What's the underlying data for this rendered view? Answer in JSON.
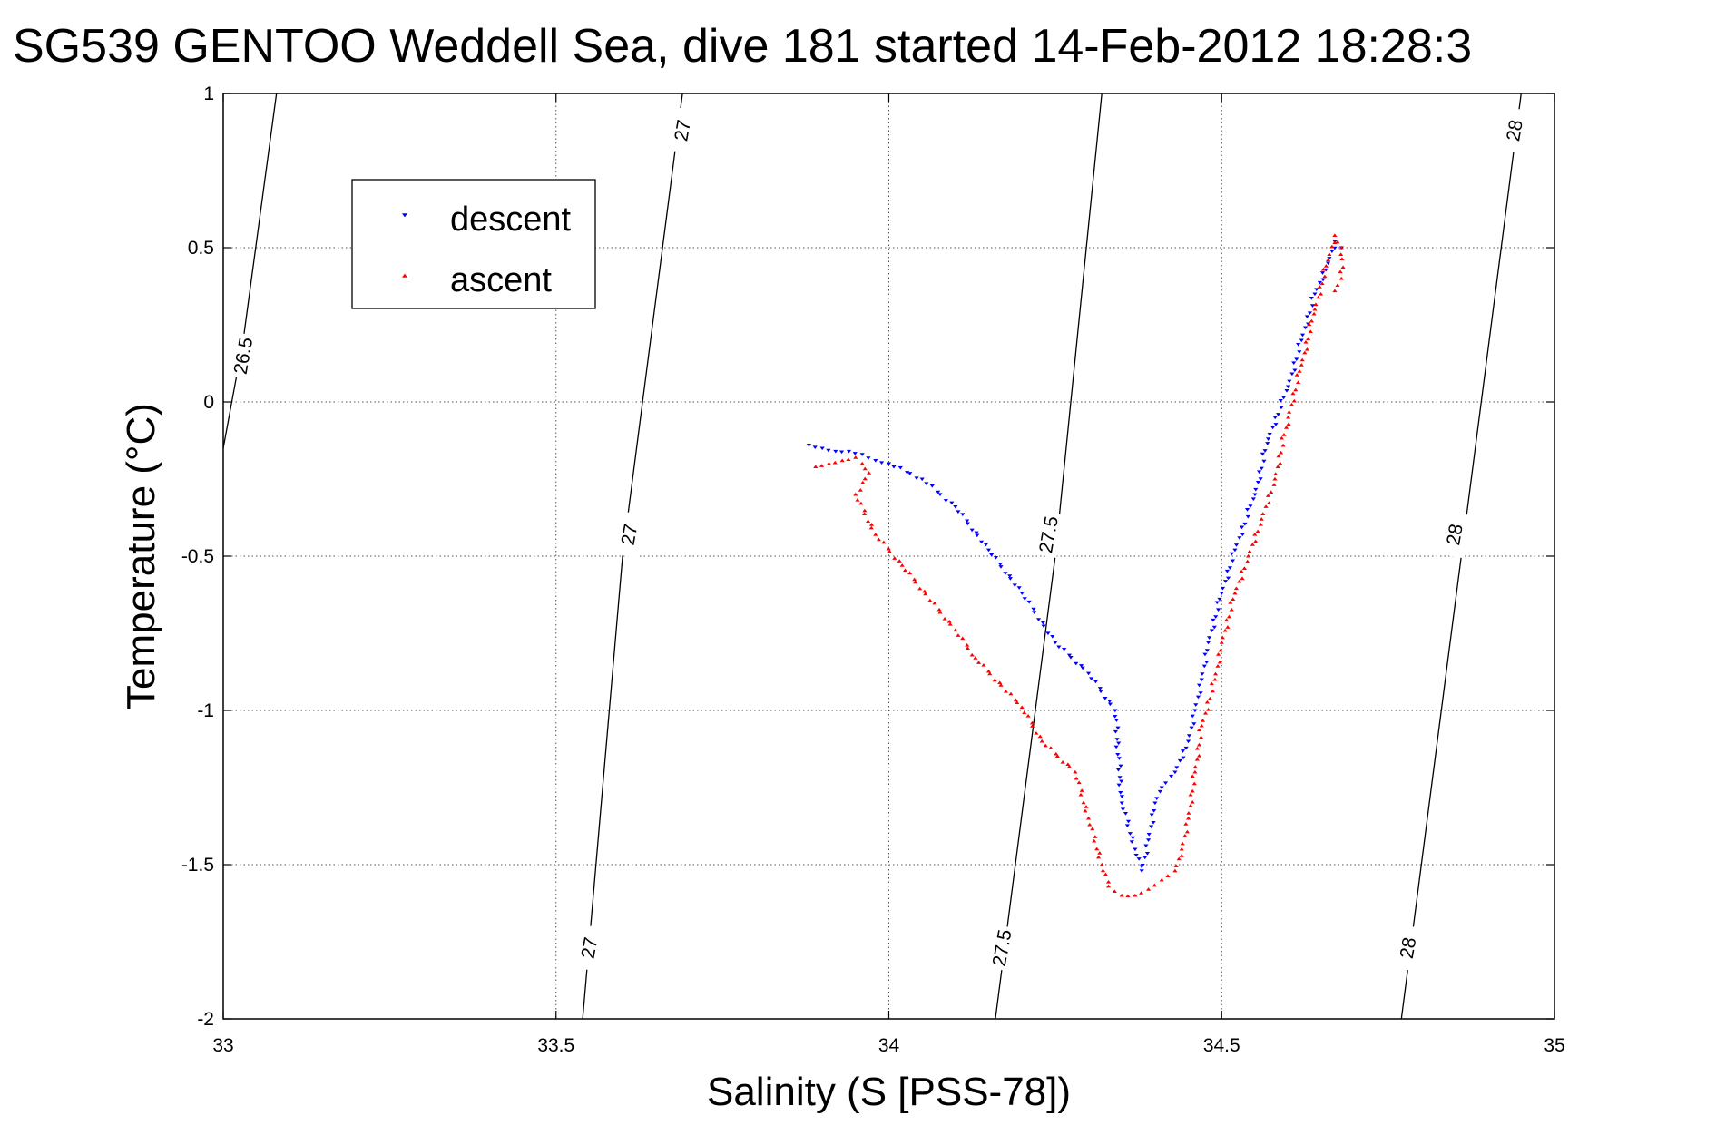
{
  "chart_data": {
    "type": "scatter",
    "title": "SG539 GENTOO Weddell Sea, dive 181 started 14-Feb-2012 18:28:3",
    "xlabel": "Salinity (S [PSS-78])",
    "ylabel": "Temperature (°C)",
    "xlim": [
      33,
      35
    ],
    "ylim": [
      -2,
      1
    ],
    "xticks": [
      33,
      33.5,
      34,
      34.5,
      35
    ],
    "xtick_labels": [
      "33",
      "33.5",
      "34",
      "34.5",
      "35"
    ],
    "yticks": [
      1,
      0.5,
      0,
      -0.5,
      -1,
      -1.5,
      -2
    ],
    "ytick_labels": [
      "1",
      "0.5",
      "0",
      "-0.5",
      "-1",
      "-1.5",
      "-2"
    ],
    "grid": true,
    "legend": {
      "position": "top-left",
      "entries": [
        {
          "label": "descent",
          "color": "#0000ff",
          "marker": "triangle-down"
        },
        {
          "label": "ascent",
          "color": "#ff0000",
          "marker": "triangle-up"
        }
      ]
    },
    "isopycnals": [
      {
        "label": "26.5",
        "points": [
          [
            33.0,
            -0.15
          ],
          [
            33.03,
            0.2
          ],
          [
            33.08,
            1.0
          ]
        ]
      },
      {
        "label": "27",
        "points": [
          [
            33.54,
            -2.0
          ],
          [
            33.6,
            -0.5
          ],
          [
            33.69,
            1.0
          ]
        ]
      },
      {
        "label": "27.5",
        "points": [
          [
            34.16,
            -2.0
          ],
          [
            34.25,
            -0.5
          ],
          [
            34.32,
            1.0
          ]
        ]
      },
      {
        "label": "28",
        "points": [
          [
            34.77,
            -2.0
          ],
          [
            34.86,
            -0.5
          ],
          [
            34.95,
            1.0
          ]
        ]
      }
    ],
    "contour_labels": [
      {
        "text": "26.5",
        "x": 33.03,
        "y": 0.15,
        "angle": -80
      },
      {
        "text": "27",
        "x": 33.69,
        "y": 0.88,
        "angle": -80
      },
      {
        "text": "27",
        "x": 33.61,
        "y": -0.43,
        "angle": -80
      },
      {
        "text": "27",
        "x": 33.55,
        "y": -1.77,
        "angle": -80
      },
      {
        "text": "27.5",
        "x": 34.24,
        "y": -0.43,
        "angle": -80
      },
      {
        "text": "27.5",
        "x": 34.17,
        "y": -1.77,
        "angle": -80
      },
      {
        "text": "28",
        "x": 34.94,
        "y": 0.88,
        "angle": -80
      },
      {
        "text": "28",
        "x": 34.85,
        "y": -0.43,
        "angle": -80
      },
      {
        "text": "28",
        "x": 34.78,
        "y": -1.77,
        "angle": -80
      }
    ],
    "series": [
      {
        "name": "descent",
        "color": "#0000ff",
        "marker": "triangle-down",
        "x": [
          33.88,
          33.9,
          33.92,
          33.94,
          33.96,
          33.98,
          34.0,
          34.05,
          34.1,
          34.15,
          34.2,
          34.25,
          34.3,
          34.34,
          34.35,
          34.37,
          34.38,
          34.39,
          34.4,
          34.41,
          34.43,
          34.45,
          34.46,
          34.47,
          34.48,
          34.5,
          34.52,
          34.55,
          34.57,
          34.6,
          34.62,
          34.64,
          34.66,
          34.67,
          34.68
        ],
        "y": [
          -0.14,
          -0.15,
          -0.16,
          -0.16,
          -0.17,
          -0.19,
          -0.2,
          -0.25,
          -0.34,
          -0.48,
          -0.62,
          -0.78,
          -0.88,
          -1.0,
          -1.3,
          -1.45,
          -1.52,
          -1.42,
          -1.3,
          -1.25,
          -1.2,
          -1.1,
          -1.0,
          -0.9,
          -0.78,
          -0.62,
          -0.48,
          -0.3,
          -0.12,
          0.05,
          0.2,
          0.35,
          0.45,
          0.52,
          0.5
        ]
      },
      {
        "name": "ascent",
        "color": "#ff0000",
        "marker": "triangle-up",
        "x": [
          33.89,
          33.91,
          33.93,
          33.95,
          33.96,
          33.97,
          33.95,
          33.98,
          34.02,
          34.1,
          34.13,
          34.2,
          34.23,
          34.28,
          34.3,
          34.32,
          34.33,
          34.35,
          34.37,
          34.39,
          34.41,
          34.43,
          34.44,
          34.45,
          34.46,
          34.47,
          34.49,
          34.5,
          34.52,
          34.54,
          34.56,
          34.58,
          34.6,
          34.62,
          34.64,
          34.66,
          34.67,
          34.68,
          34.68,
          34.67
        ],
        "y": [
          -0.21,
          -0.2,
          -0.19,
          -0.18,
          -0.2,
          -0.23,
          -0.3,
          -0.43,
          -0.53,
          -0.74,
          -0.83,
          -0.99,
          -1.1,
          -1.2,
          -1.35,
          -1.5,
          -1.57,
          -1.6,
          -1.6,
          -1.58,
          -1.55,
          -1.52,
          -1.45,
          -1.35,
          -1.2,
          -1.05,
          -0.9,
          -0.78,
          -0.62,
          -0.5,
          -0.38,
          -0.25,
          -0.05,
          0.12,
          0.3,
          0.46,
          0.54,
          0.5,
          0.4,
          0.36
        ]
      }
    ]
  }
}
